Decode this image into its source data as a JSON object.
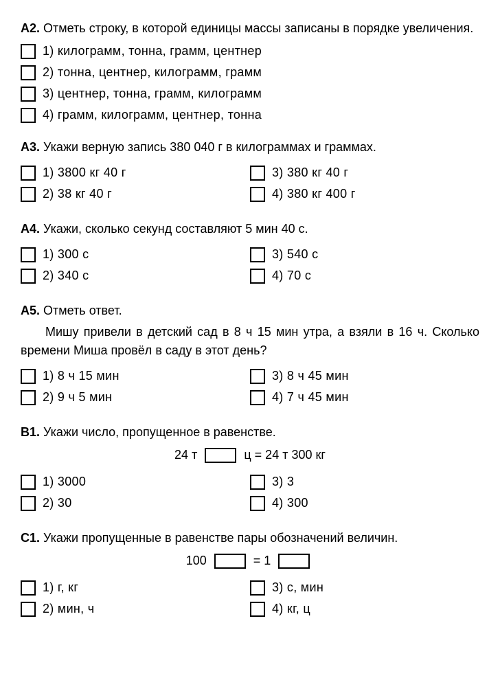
{
  "questions": [
    {
      "label": "А2.",
      "text": "Отметь строку, в которой единицы массы записаны в порядке увеличения.",
      "layout": "single",
      "options": [
        "1) килограмм, тонна, грамм, центнер",
        "2) тонна, центнер, килограмм, грамм",
        "3) центнер, тонна, грамм, килограмм",
        "4) грамм, килограмм, центнер, тонна"
      ]
    },
    {
      "label": "А3.",
      "text": "Укажи верную запись 380 040 г в килограммах и граммах.",
      "layout": "two",
      "left": [
        "1) 3800 кг 40 г",
        "2) 38 кг 40 г"
      ],
      "right": [
        "3) 380 кг 40 г",
        "4) 380 кг 400 г"
      ]
    },
    {
      "label": "А4.",
      "text": "Укажи, сколько секунд составляют 5 мин 40 с.",
      "layout": "two",
      "left": [
        "1) 300 с",
        "2) 340 с"
      ],
      "right": [
        "3) 540 с",
        "4) 70 с"
      ]
    },
    {
      "label": "А5.",
      "text": "Отметь ответ.",
      "extra": "Мишу привели в детский сад в 8 ч 15 мин утра, а взяли в 16 ч. Сколько времени Миша провёл в саду в этот день?",
      "layout": "two",
      "left": [
        "1) 8 ч 15 мин",
        "2) 9 ч 5 мин"
      ],
      "right": [
        "3) 8 ч 45 мин",
        "4) 7 ч 45 мин"
      ]
    },
    {
      "label": "В1.",
      "text": "Укажи число, пропущенное в равенстве.",
      "equation": {
        "before": "24 т",
        "mid": "ц = 24 т 300 кг"
      },
      "layout": "two",
      "left": [
        "1) 3000",
        "2) 30"
      ],
      "right": [
        "3) 3",
        "4) 300"
      ]
    },
    {
      "label": "С1.",
      "text": "Укажи пропущенные в равенстве пары обозначений величин.",
      "equation2": {
        "a": "100",
        "b": "= 1"
      },
      "layout": "two",
      "left": [
        "1) г, кг",
        "2) мин, ч"
      ],
      "right": [
        "3) с, мин",
        "4) кг, ц"
      ]
    }
  ]
}
